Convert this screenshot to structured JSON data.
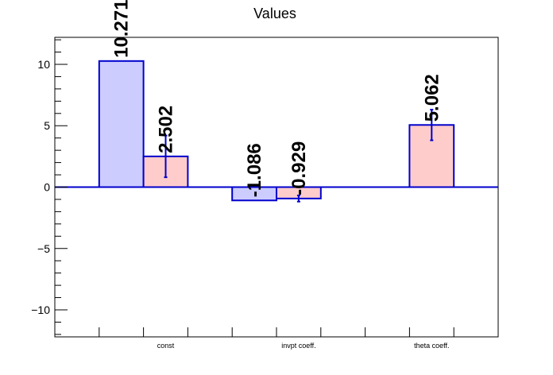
{
  "chart_data": {
    "type": "bar",
    "title": "Values",
    "categories": [
      "const",
      "invpt coeff.",
      "theta coeff."
    ],
    "ylim": [
      -12.2,
      12.2
    ],
    "yticks": [
      -10,
      -5,
      0,
      5,
      10
    ],
    "ytick_labels": [
      "−10",
      "−5",
      "0",
      "5",
      "10"
    ],
    "grid": false,
    "legend": "none",
    "series": [
      {
        "fill": "#ccccff",
        "stroke": "#0000cc",
        "values": [
          10.271,
          -1.086,
          null
        ],
        "labels": [
          "10.271",
          "-1.086",
          ""
        ],
        "errors": [
          null,
          null,
          null
        ]
      },
      {
        "fill": "#ffcccc",
        "stroke": "#0000cc",
        "values": [
          2.502,
          -0.929,
          5.062
        ],
        "labels": [
          "2.502",
          "-0.929",
          "5.062"
        ],
        "errors": [
          1.7,
          0.25,
          1.25
        ]
      }
    ]
  }
}
